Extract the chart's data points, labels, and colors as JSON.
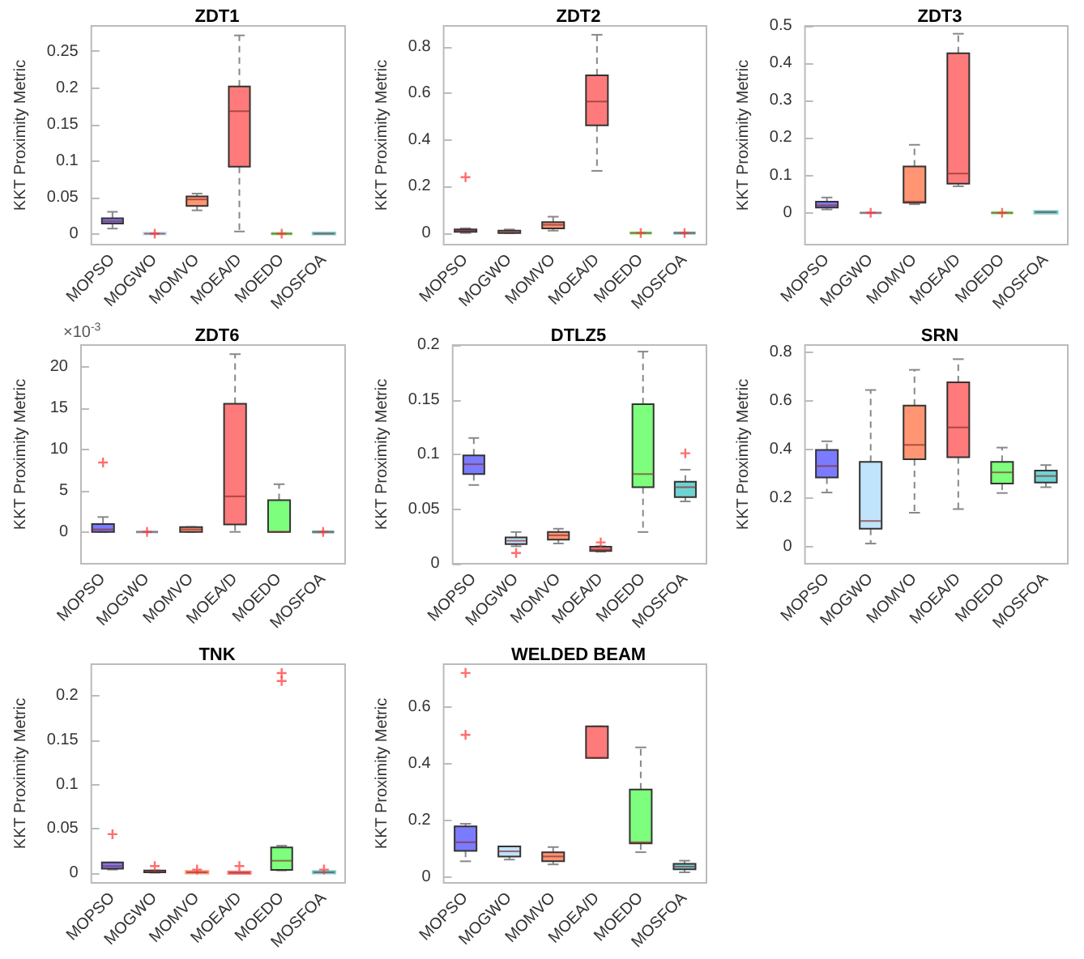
{
  "chart_data": [
    {
      "type": "box",
      "title": "ZDT1",
      "ylabel": "KKT Proximity Metric",
      "categories": [
        "MOPSO",
        "MOGWO",
        "MOMVO",
        "MOEA/D",
        "MOEDO",
        "MOSFOA"
      ],
      "colors": [
        "#7b7bff",
        "#bfe4fb",
        "#ff9573",
        "#ff7b7b",
        "#7dff7d",
        "#6fd3d3"
      ],
      "ylim": [
        -0.015,
        0.285
      ],
      "yticks": [
        0,
        0.05,
        0.1,
        0.15,
        0.2,
        0.25
      ],
      "boxes": [
        {
          "low": 0.007,
          "q1": 0.014,
          "median": 0.017,
          "q3": 0.021,
          "high": 0.03
        },
        {
          "low": 0,
          "q1": 0,
          "median": 0,
          "q3": 0.0005,
          "high": 0.001,
          "outliers": [
            0
          ]
        },
        {
          "low": 0.032,
          "q1": 0.038,
          "median": 0.047,
          "q3": 0.051,
          "high": 0.055
        },
        {
          "low": 0.003,
          "q1": 0.092,
          "median": 0.168,
          "q3": 0.202,
          "high": 0.272
        },
        {
          "low": 0,
          "q1": 0,
          "median": 0,
          "q3": 0,
          "high": 0,
          "outliers": [
            0
          ]
        },
        {
          "low": 0,
          "q1": 0,
          "median": 0,
          "q3": 0.0005,
          "high": 0.001
        }
      ]
    },
    {
      "type": "box",
      "title": "ZDT2",
      "ylabel": "KKT Proximity Metric",
      "categories": [
        "MOPSO",
        "MOGWO",
        "MOMVO",
        "MOEA/D",
        "MOEDO",
        "MOSFOA"
      ],
      "colors": [
        "#7b7bff",
        "#bfe4fb",
        "#ff9573",
        "#ff7b7b",
        "#7dff7d",
        "#6fd3d3"
      ],
      "ylim": [
        -0.05,
        0.89
      ],
      "yticks": [
        0,
        0.2,
        0.4,
        0.6,
        0.8
      ],
      "boxes": [
        {
          "low": 0,
          "q1": 0.005,
          "median": 0.01,
          "q3": 0.015,
          "high": 0.02,
          "outliers": [
            0.24
          ]
        },
        {
          "low": 0,
          "q1": 0,
          "median": 0.005,
          "q3": 0.01,
          "high": 0.015
        },
        {
          "low": 0.01,
          "q1": 0.02,
          "median": 0.035,
          "q3": 0.047,
          "high": 0.07
        },
        {
          "low": 0.267,
          "q1": 0.463,
          "median": 0.565,
          "q3": 0.678,
          "high": 0.852
        },
        {
          "low": 0,
          "q1": 0,
          "median": 0,
          "q3": 0,
          "high": 0,
          "outliers": [
            0
          ]
        },
        {
          "low": 0,
          "q1": 0,
          "median": 0,
          "q3": 0,
          "high": 0,
          "outliers": [
            0
          ]
        }
      ]
    },
    {
      "type": "box",
      "title": "ZDT3",
      "ylabel": "KKT Proximity Metric",
      "categories": [
        "MOPSO",
        "MOGWO",
        "MOMVO",
        "MOEA/D",
        "MOEDO",
        "MOSFOA"
      ],
      "colors": [
        "#7b7bff",
        "#bfe4fb",
        "#ff9573",
        "#ff7b7b",
        "#7dff7d",
        "#6fd3d3"
      ],
      "ylim": [
        -0.085,
        0.5
      ],
      "yticks": [
        0,
        0.1,
        0.2,
        0.3,
        0.4,
        0.5
      ],
      "boxes": [
        {
          "low": 0.009,
          "q1": 0.014,
          "median": 0.02,
          "q3": 0.03,
          "high": 0.041
        },
        {
          "low": 0,
          "q1": 0,
          "median": 0,
          "q3": 0,
          "high": 0,
          "outliers": [
            0
          ]
        },
        {
          "low": 0.023,
          "q1": 0.027,
          "median": 0.03,
          "q3": 0.124,
          "high": 0.182
        },
        {
          "low": 0.071,
          "q1": 0.078,
          "median": 0.105,
          "q3": 0.427,
          "high": 0.479
        },
        {
          "low": 0,
          "q1": 0,
          "median": 0,
          "q3": 0,
          "high": 0,
          "outliers": [
            0
          ]
        },
        {
          "low": 0,
          "q1": 0,
          "median": 0.002,
          "q3": 0.003,
          "high": 0.003
        }
      ]
    },
    {
      "type": "box",
      "title": "ZDT6",
      "ylabel": "KKT Proximity Metric",
      "annotations": [
        "×10$^{-3}$"
      ],
      "categories": [
        "MOPSO",
        "MOGWO",
        "MOMVO",
        "MOEA/D",
        "MOEDO",
        "MOSFOA"
      ],
      "colors": [
        "#7b7bff",
        "#bfe4fb",
        "#ff9573",
        "#ff7b7b",
        "#7dff7d",
        "#6fd3d3"
      ],
      "ylim": [
        -3.85,
        22.6
      ],
      "yticks": [
        0,
        5,
        10,
        15,
        20
      ],
      "boxes": [
        {
          "low": 0,
          "q1": 0,
          "median": 0.3,
          "q3": 0.96,
          "high": 1.8,
          "outliers": [
            8.4
          ]
        },
        {
          "low": 0,
          "q1": 0,
          "median": 0,
          "q3": 0,
          "high": 0,
          "outliers": [
            0
          ]
        },
        {
          "low": 0,
          "q1": 0,
          "median": 0.3,
          "q3": 0.58,
          "high": 0.6
        },
        {
          "low": 0,
          "q1": 0.9,
          "median": 4.3,
          "q3": 15.5,
          "high": 21.5
        },
        {
          "low": 0,
          "q1": 0,
          "median": 0,
          "q3": 3.85,
          "high": 5.77
        },
        {
          "low": 0,
          "q1": 0,
          "median": 0,
          "q3": 0,
          "high": 0,
          "outliers": [
            0
          ]
        }
      ]
    },
    {
      "type": "box",
      "title": "DTLZ5",
      "ylabel": "KKT Proximity Metric",
      "categories": [
        "MOPSO",
        "MOGWO",
        "MOMVO",
        "MOEA/D",
        "MOEDO",
        "MOSFOA"
      ],
      "colors": [
        "#7b7bff",
        "#bfe4fb",
        "#ff9573",
        "#ff7b7b",
        "#7dff7d",
        "#6fd3d3"
      ],
      "ylim": [
        0,
        0.2
      ],
      "yticks": [
        0,
        0.05,
        0.1,
        0.15,
        0.2
      ],
      "boxes": [
        {
          "low": 0.072,
          "q1": 0.082,
          "median": 0.091,
          "q3": 0.099,
          "high": 0.115
        },
        {
          "low": 0.016,
          "q1": 0.018,
          "median": 0.021,
          "q3": 0.024,
          "high": 0.029,
          "outliers": [
            0.0098
          ]
        },
        {
          "low": 0.0185,
          "q1": 0.022,
          "median": 0.026,
          "q3": 0.029,
          "high": 0.032
        },
        {
          "low": 0.011,
          "q1": 0.0117,
          "median": 0.013,
          "q3": 0.0156,
          "high": 0.016,
          "outliers": [
            0.0195
          ]
        },
        {
          "low": 0.029,
          "q1": 0.07,
          "median": 0.082,
          "q3": 0.146,
          "high": 0.194
        },
        {
          "low": 0.057,
          "q1": 0.061,
          "median": 0.07,
          "q3": 0.075,
          "high": 0.086,
          "outliers": [
            0.101
          ]
        }
      ]
    },
    {
      "type": "box",
      "title": "SRN",
      "ylabel": "KKT Proximity Metric",
      "categories": [
        "MOPSO",
        "MOGWO",
        "MOMVO",
        "MOEA/D",
        "MOEDO",
        "MOSFOA"
      ],
      "colors": [
        "#7b7bff",
        "#bfe4fb",
        "#ff9573",
        "#ff7b7b",
        "#7dff7d",
        "#6fd3d3"
      ],
      "ylim": [
        -0.07,
        0.83
      ],
      "yticks": [
        0,
        0.2,
        0.4,
        0.6,
        0.8
      ],
      "boxes": [
        {
          "low": 0.223,
          "q1": 0.285,
          "median": 0.332,
          "q3": 0.398,
          "high": 0.434
        },
        {
          "low": 0.013,
          "q1": 0.074,
          "median": 0.106,
          "q3": 0.349,
          "high": 0.645
        },
        {
          "low": 0.14,
          "q1": 0.36,
          "median": 0.419,
          "q3": 0.581,
          "high": 0.728
        },
        {
          "low": 0.155,
          "q1": 0.368,
          "median": 0.491,
          "q3": 0.677,
          "high": 0.772
        },
        {
          "low": 0.221,
          "q1": 0.26,
          "median": 0.306,
          "q3": 0.349,
          "high": 0.408
        },
        {
          "low": 0.245,
          "q1": 0.264,
          "median": 0.291,
          "q3": 0.313,
          "high": 0.336
        }
      ]
    },
    {
      "type": "box",
      "title": "TNK",
      "ylabel": "KKT Proximity Metric",
      "categories": [
        "MOPSO",
        "MOGWO",
        "MOMVO",
        "MOEA/D",
        "MOEDO",
        "MOSFOA"
      ],
      "colors": [
        "#7b7bff",
        "#bfe4fb",
        "#ff9573",
        "#ff7b7b",
        "#7dff7d",
        "#6fd3d3"
      ],
      "ylim": [
        -0.011,
        0.236
      ],
      "yticks": [
        0,
        0.05,
        0.1,
        0.15,
        0.2
      ],
      "boxes": [
        {
          "low": 0.004,
          "q1": 0.005,
          "median": 0.008,
          "q3": 0.012,
          "high": 0.012,
          "outliers": [
            0.044
          ]
        },
        {
          "low": 0.0005,
          "q1": 0.001,
          "median": 0.002,
          "q3": 0.003,
          "high": 0.003,
          "outliers": [
            0.008
          ]
        },
        {
          "low": 0,
          "q1": 0.0005,
          "median": 0.001,
          "q3": 0.0015,
          "high": 0.002,
          "outliers": [
            0.004
          ]
        },
        {
          "low": 0,
          "q1": 0,
          "median": 0.0005,
          "q3": 0.001,
          "high": 0.001,
          "outliers": [
            0.008
          ]
        },
        {
          "low": 0.003,
          "q1": 0.0036,
          "median": 0.014,
          "q3": 0.029,
          "high": 0.031,
          "outliers": [
            0.226,
            0.217
          ]
        },
        {
          "low": 0,
          "q1": 0.0005,
          "median": 0.001,
          "q3": 0.0015,
          "high": 0.002,
          "outliers": [
            0.004
          ]
        }
      ]
    },
    {
      "type": "box",
      "title": "WELDED BEAM",
      "ylabel": "KKT Proximity Metric",
      "categories": [
        "MOPSO",
        "MOGWO",
        "MOMVO",
        "MOEA/D",
        "MOEDO",
        "MOSFOA"
      ],
      "colors": [
        "#7b7bff",
        "#bfe4fb",
        "#ff9573",
        "#ff7b7b",
        "#7dff7d",
        "#6fd3d3"
      ],
      "ylim": [
        -0.02,
        0.75
      ],
      "yticks": [
        0,
        0.2,
        0.4,
        0.6
      ],
      "boxes": [
        {
          "low": 0.056,
          "q1": 0.093,
          "median": 0.123,
          "q3": 0.179,
          "high": 0.188,
          "outliers": [
            0.719,
            0.501
          ]
        },
        {
          "low": 0.062,
          "q1": 0.073,
          "median": 0.091,
          "q3": 0.108,
          "high": 0.108
        },
        {
          "low": 0.045,
          "q1": 0.056,
          "median": 0.073,
          "q3": 0.088,
          "high": 0.106
        },
        {
          "low": 0.42,
          "q1": 0.42,
          "median": 0.42,
          "q3": 0.531,
          "high": 0.531
        },
        {
          "low": 0.088,
          "q1": 0.119,
          "median": 0.123,
          "q3": 0.309,
          "high": 0.457
        },
        {
          "low": 0.017,
          "q1": 0.028,
          "median": 0.037,
          "q3": 0.047,
          "high": 0.058
        }
      ]
    }
  ]
}
